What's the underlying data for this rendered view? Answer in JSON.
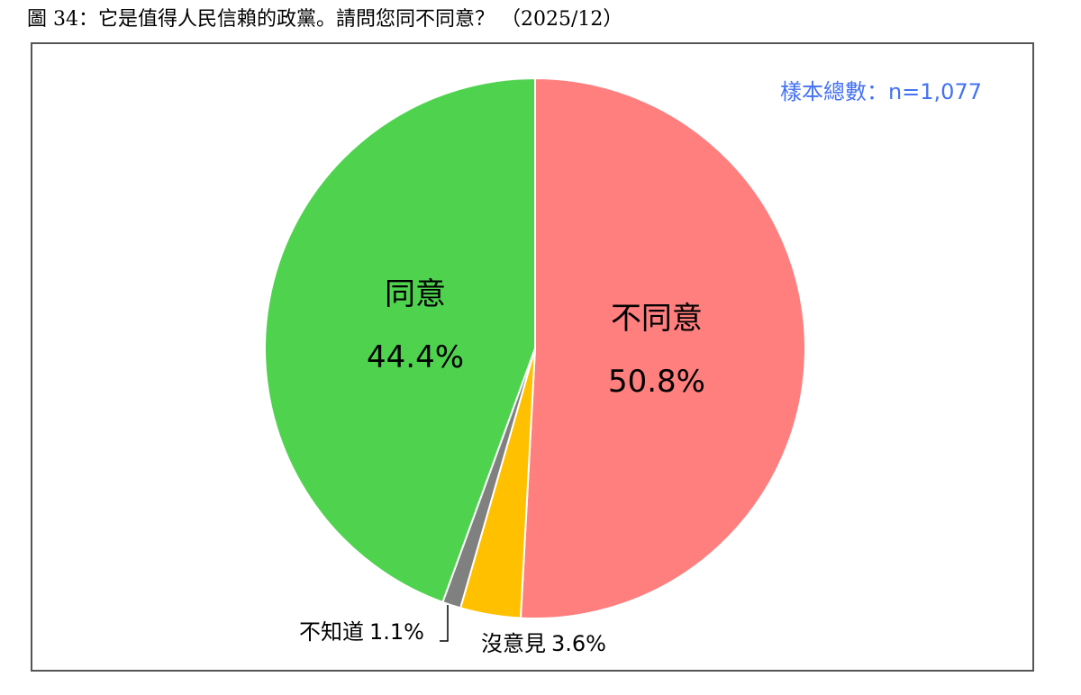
{
  "chart_data": {
    "type": "pie",
    "title": "圖 34：它是值得人民信賴的政黨。請問您同不同意？ （2025/12）",
    "annotation": "樣本總數：n=1,077",
    "categories": [
      "不同意",
      "沒意見",
      "不知道",
      "同意"
    ],
    "values": [
      50.8,
      3.6,
      1.1,
      44.4
    ],
    "value_labels": [
      "50.8%",
      "3.6%",
      "1.1%",
      "44.4%"
    ],
    "colors": [
      "#ff7f7f",
      "#ffc000",
      "#808080",
      "#4fd34f"
    ]
  }
}
